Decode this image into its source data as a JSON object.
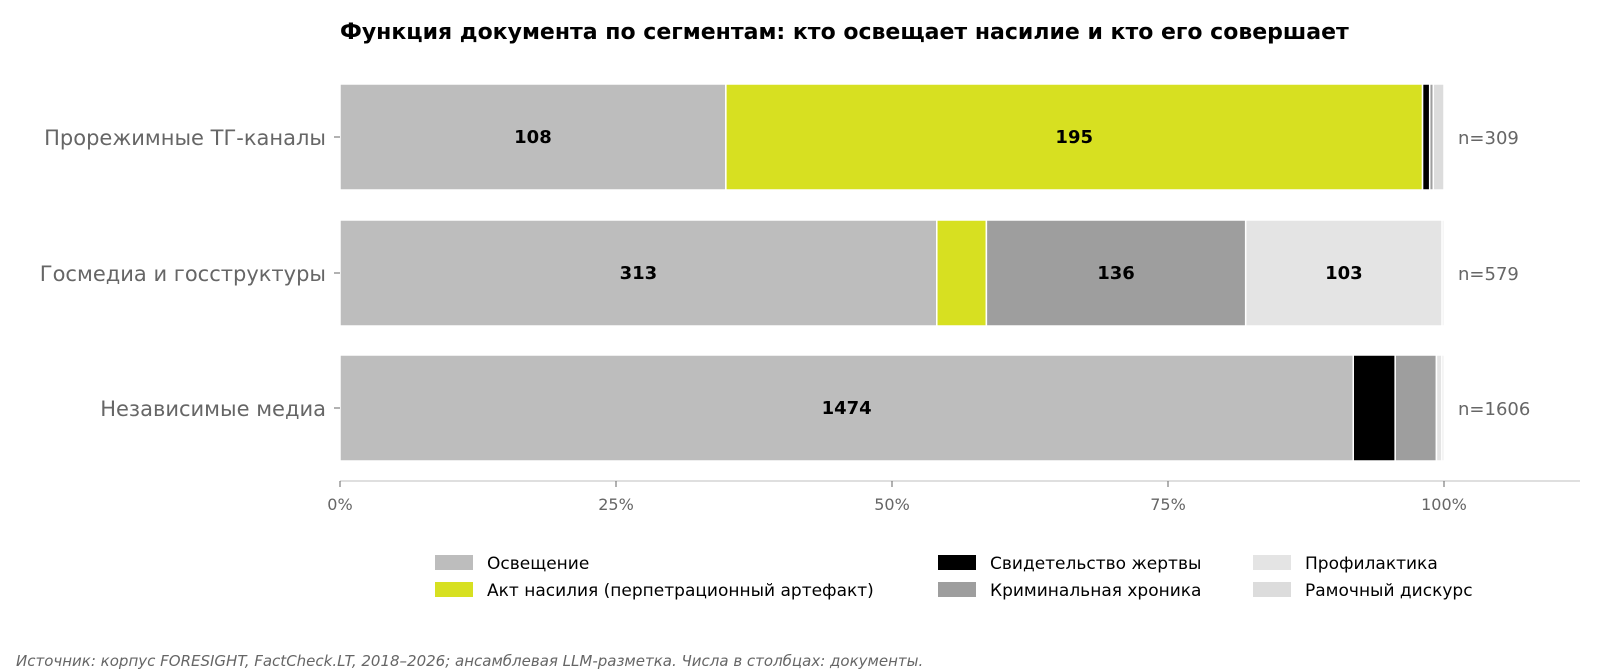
{
  "chart_data": {
    "type": "bar",
    "orientation": "horizontal",
    "stacked": true,
    "normalized": true,
    "title": "Функция документа по сегментам: кто освещает насилие и кто его совершает",
    "categories": [
      "Прорежимные ТГ-каналы",
      "Госмедиа и госструктуры",
      "Независимые медиа"
    ],
    "totals_labels": [
      "n=309",
      "n=579",
      "n=1606"
    ],
    "xlim": [
      0,
      100
    ],
    "x_ticks": [
      "0%",
      "25%",
      "50%",
      "75%",
      "100%"
    ],
    "grid": false,
    "legend_position": "bottom",
    "series": [
      {
        "name": "Освещение",
        "color": "#bdbdbd",
        "values": [
          108,
          313,
          1474
        ]
      },
      {
        "name": "Акт насилия (перпетрационный артефакт)",
        "color": "#d7e021",
        "values": [
          195,
          26,
          0
        ]
      },
      {
        "name": "Свидетельство жертвы",
        "color": "#000000",
        "values": [
          2,
          0,
          61
        ]
      },
      {
        "name": "Криминальная хроника",
        "color": "#9e9e9e",
        "values": [
          1,
          136,
          60
        ]
      },
      {
        "name": "Профилактика",
        "color": "#e4e4e4",
        "values": [
          0,
          103,
          8
        ]
      },
      {
        "name": "Рамочный дискурс",
        "color": "#dcdcdc",
        "values": [
          3,
          1,
          3
        ]
      }
    ],
    "label_threshold": 100,
    "source_note": "Источник: корпус FORESIGHT, FactCheck.LT, 2018–2026; ансамблевая LLM-разметка. Числа в столбцах: документы."
  }
}
